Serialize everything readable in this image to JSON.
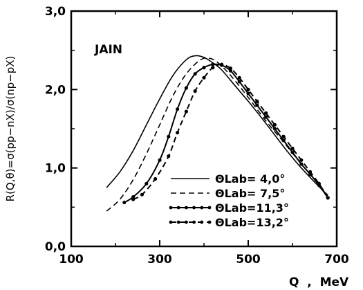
{
  "chart_data": {
    "type": "line",
    "annotation": "JAIN",
    "xlabel": "Q  ,  MeV",
    "ylabel": "R(Q,θ)=σ(pp−nX)/σ(np−pX)",
    "xlim": [
      100,
      700
    ],
    "ylim": [
      0.0,
      3.0
    ],
    "x_ticks": [
      100,
      300,
      500,
      700
    ],
    "y_ticks": [
      "0,0",
      "1,0",
      "2,0",
      "3,0"
    ],
    "y_tick_values": [
      0.0,
      1.0,
      2.0,
      3.0
    ],
    "grid": false,
    "legend_position": "bottom-center",
    "series": [
      {
        "name": "ΘLab= 4,0°",
        "style": "solid",
        "markers": false,
        "points": [
          [
            180,
            0.75
          ],
          [
            210,
            0.95
          ],
          [
            240,
            1.22
          ],
          [
            270,
            1.55
          ],
          [
            300,
            1.88
          ],
          [
            330,
            2.18
          ],
          [
            360,
            2.38
          ],
          [
            380,
            2.43
          ],
          [
            400,
            2.41
          ],
          [
            420,
            2.34
          ],
          [
            440,
            2.25
          ],
          [
            470,
            2.05
          ],
          [
            500,
            1.85
          ],
          [
            530,
            1.64
          ],
          [
            560,
            1.42
          ],
          [
            590,
            1.2
          ],
          [
            620,
            1.0
          ],
          [
            650,
            0.82
          ],
          [
            680,
            0.65
          ]
        ]
      },
      {
        "name": "ΘLab= 7,5°",
        "style": "dashed",
        "markers": false,
        "points": [
          [
            180,
            0.45
          ],
          [
            210,
            0.6
          ],
          [
            240,
            0.85
          ],
          [
            270,
            1.18
          ],
          [
            300,
            1.55
          ],
          [
            330,
            1.92
          ],
          [
            360,
            2.2
          ],
          [
            390,
            2.37
          ],
          [
            410,
            2.4
          ],
          [
            430,
            2.35
          ],
          [
            460,
            2.18
          ],
          [
            500,
            1.9
          ],
          [
            540,
            1.6
          ],
          [
            580,
            1.33
          ],
          [
            620,
            1.05
          ],
          [
            650,
            0.85
          ],
          [
            680,
            0.65
          ]
        ]
      },
      {
        "name": "ΘLab=11,3°",
        "style": "solid",
        "markers": true,
        "points": [
          [
            220,
            0.56
          ],
          [
            240,
            0.63
          ],
          [
            270,
            0.8
          ],
          [
            300,
            1.1
          ],
          [
            320,
            1.4
          ],
          [
            340,
            1.75
          ],
          [
            360,
            2.02
          ],
          [
            380,
            2.2
          ],
          [
            400,
            2.28
          ],
          [
            420,
            2.32
          ],
          [
            440,
            2.31
          ],
          [
            460,
            2.24
          ],
          [
            480,
            2.1
          ],
          [
            500,
            1.95
          ],
          [
            520,
            1.8
          ],
          [
            540,
            1.65
          ],
          [
            560,
            1.5
          ],
          [
            580,
            1.35
          ],
          [
            600,
            1.2
          ],
          [
            620,
            1.05
          ],
          [
            640,
            0.92
          ],
          [
            660,
            0.78
          ],
          [
            680,
            0.62
          ]
        ]
      },
      {
        "name": "ΘLab=13,2°",
        "style": "dashed",
        "markers": true,
        "points": [
          [
            240,
            0.6
          ],
          [
            260,
            0.66
          ],
          [
            290,
            0.86
          ],
          [
            320,
            1.15
          ],
          [
            340,
            1.45
          ],
          [
            360,
            1.72
          ],
          [
            380,
            1.98
          ],
          [
            400,
            2.15
          ],
          [
            420,
            2.28
          ],
          [
            440,
            2.32
          ],
          [
            460,
            2.27
          ],
          [
            480,
            2.15
          ],
          [
            500,
            2.0
          ],
          [
            520,
            1.85
          ],
          [
            540,
            1.7
          ],
          [
            560,
            1.55
          ],
          [
            580,
            1.4
          ],
          [
            600,
            1.25
          ],
          [
            620,
            1.1
          ],
          [
            640,
            0.95
          ],
          [
            660,
            0.8
          ],
          [
            680,
            0.62
          ]
        ]
      }
    ]
  }
}
